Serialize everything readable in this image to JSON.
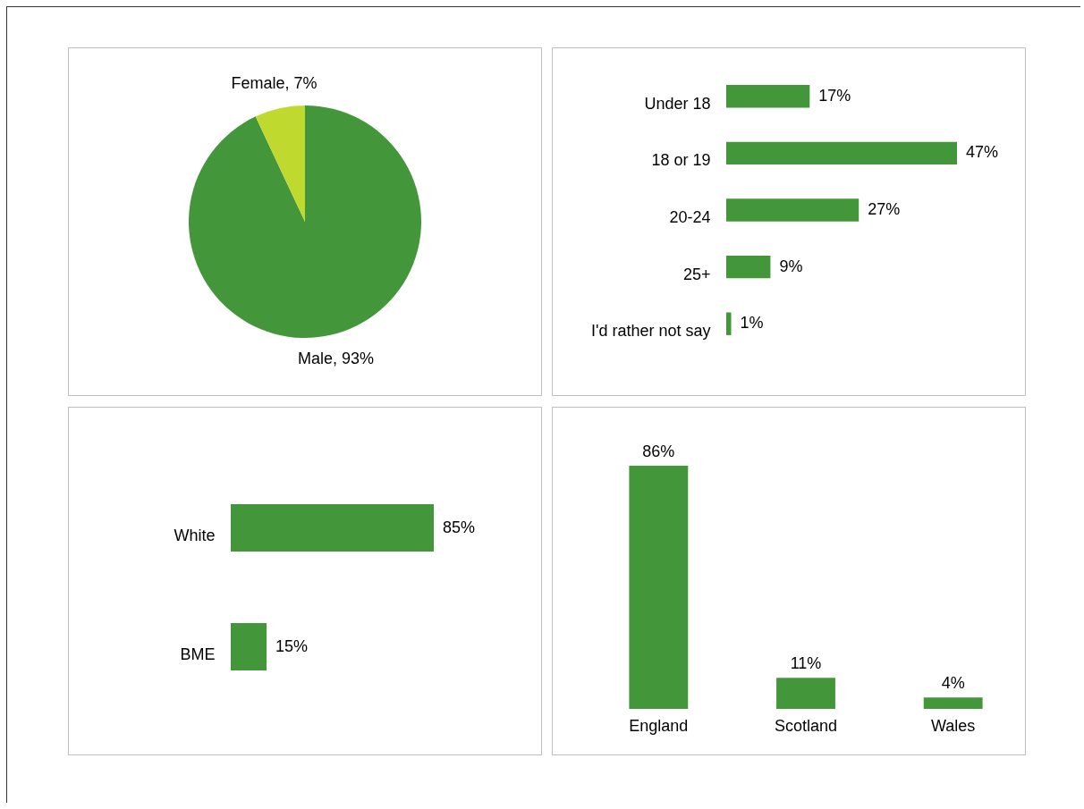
{
  "chart_data": [
    {
      "type": "pie",
      "categories": [
        "Male",
        "Female"
      ],
      "values": [
        93,
        7
      ],
      "colors": [
        "#43963a",
        "#c0d92f"
      ],
      "value_labels": [
        "93%",
        "7%"
      ]
    },
    {
      "type": "bar",
      "orientation": "horizontal",
      "categories": [
        "Under 18",
        "18 or 19",
        "20-24",
        "25+",
        "I'd rather not say"
      ],
      "values": [
        17,
        47,
        27,
        9,
        1
      ],
      "color": "#43963a",
      "value_labels": [
        "17%",
        "47%",
        "27%",
        "9%",
        "1%"
      ]
    },
    {
      "type": "bar",
      "orientation": "horizontal",
      "categories": [
        "White",
        "BME"
      ],
      "values": [
        85,
        15
      ],
      "color": "#43963a",
      "value_labels": [
        "85%",
        "15%"
      ]
    },
    {
      "type": "bar",
      "categories": [
        "England",
        "Scotland",
        "Wales"
      ],
      "values": [
        86,
        11,
        4
      ],
      "color": "#43963a",
      "value_labels": [
        "86%",
        "11%",
        "4%"
      ]
    }
  ]
}
